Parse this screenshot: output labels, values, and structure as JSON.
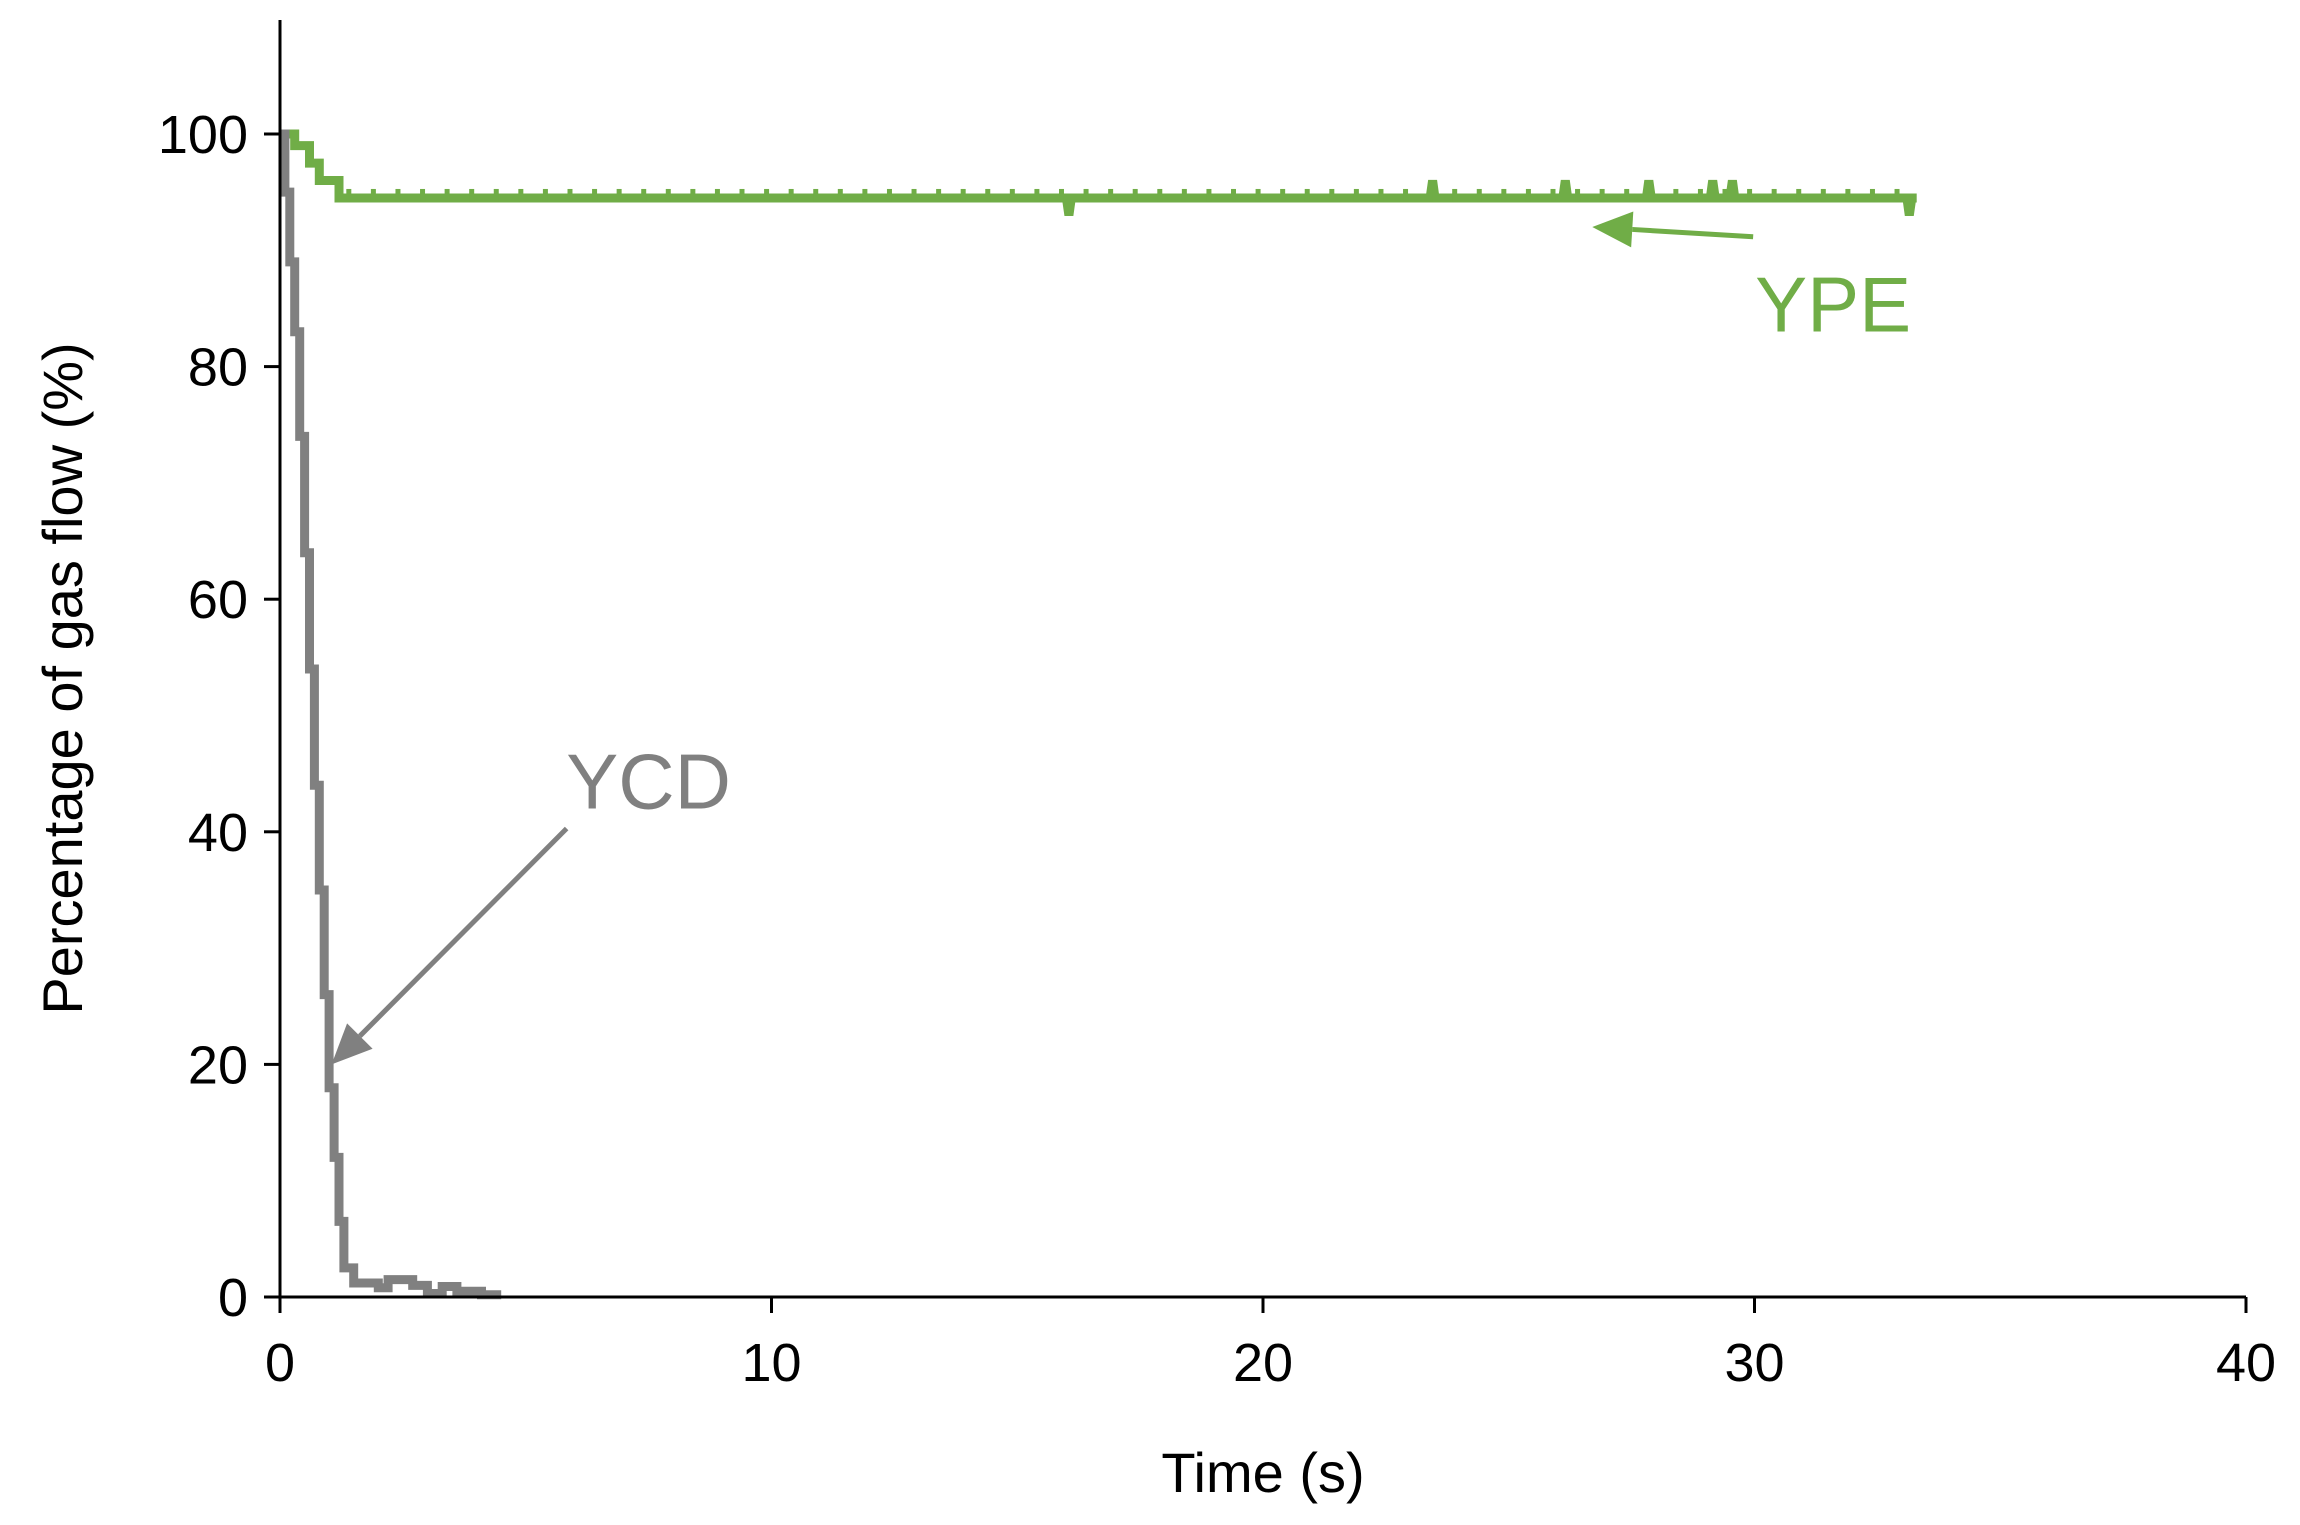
{
  "chart_data": {
    "type": "line",
    "title": "",
    "xlabel": "Time (s)",
    "ylabel": "Percentage of gas flow (%)",
    "xlim": [
      0,
      40
    ],
    "ylim": [
      0,
      110
    ],
    "xticks": [
      "0",
      "10",
      "20",
      "30",
      "40"
    ],
    "yticks": [
      "0",
      "20",
      "40",
      "60",
      "80",
      "100"
    ],
    "grid": false,
    "legend": "none",
    "series": [
      {
        "name": "YPE",
        "color": "#70AD47",
        "x": [
          0,
          0.3,
          0.3,
          0.6,
          0.6,
          0.8,
          0.8,
          1.2,
          1.2,
          16.0,
          16.05,
          16.1,
          23.4,
          23.45,
          23.5,
          26.1,
          26.15,
          26.2,
          27.8,
          27.85,
          27.9,
          29.1,
          29.15,
          29.2,
          29.5,
          29.55,
          29.6,
          33.1,
          33.15,
          33.2,
          33.3
        ],
        "y": [
          100,
          100,
          99,
          99,
          97.5,
          97.5,
          96,
          96,
          94.5,
          94.5,
          93,
          94.5,
          94.5,
          96,
          94.5,
          94.5,
          96,
          94.5,
          94.5,
          96,
          94.5,
          94.5,
          96,
          94.5,
          94.5,
          96,
          94.5,
          94.5,
          93,
          94.5,
          94.5
        ]
      },
      {
        "name": "YCD",
        "color": "#808080",
        "x": [
          0,
          0.1,
          0.1,
          0.2,
          0.2,
          0.3,
          0.3,
          0.4,
          0.4,
          0.5,
          0.5,
          0.6,
          0.6,
          0.7,
          0.7,
          0.8,
          0.8,
          0.9,
          0.9,
          1.0,
          1.0,
          1.1,
          1.1,
          1.2,
          1.2,
          1.3,
          1.3,
          1.5,
          1.5,
          2.0,
          2.0,
          2.2,
          2.2,
          2.7,
          2.7,
          3.0,
          3.0,
          3.3,
          3.3,
          3.6,
          3.6,
          4.1,
          4.1,
          4.5
        ],
        "y": [
          100,
          100,
          95,
          95,
          89,
          89,
          83,
          83,
          74,
          74,
          64,
          64,
          54,
          54,
          44,
          44,
          35,
          35,
          26,
          26,
          18,
          18,
          12,
          12,
          6.5,
          6.5,
          2.5,
          2.5,
          1.2,
          1.2,
          0.8,
          0.8,
          1.5,
          1.5,
          1.0,
          1.0,
          0.3,
          0.3,
          0.9,
          0.9,
          0.5,
          0.5,
          0.2,
          0.2
        ]
      }
    ],
    "annotations": [
      {
        "text": "YPE",
        "series": "YPE",
        "color": "#70AD47",
        "text_at": [
          31.6,
          83
        ],
        "arrow_to": [
          26.7,
          92
        ]
      },
      {
        "text": "YCD",
        "series": "YCD",
        "color": "#808080",
        "text_at": [
          7.5,
          42
        ],
        "arrow_to": [
          1.05,
          20
        ]
      }
    ]
  }
}
